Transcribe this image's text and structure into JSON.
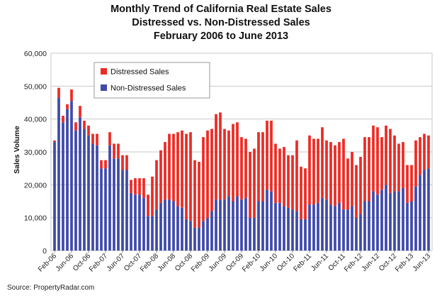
{
  "chart_data": {
    "type": "bar",
    "stacked": true,
    "title": [
      "Monthly Trend of California Real Estate Sales",
      "Distressed vs. Non-Distressed Sales",
      "February 2006 to June 2013"
    ],
    "ylabel": "Sales Volume",
    "source": "Source: PropertyRadar.com",
    "ylim": [
      0,
      60000
    ],
    "yticks": [
      "0",
      "10,000",
      "20,000",
      "30,000",
      "40,000",
      "50,000",
      "60,000"
    ],
    "grid": true,
    "legend": {
      "position": "top-left"
    },
    "start_month": "2006-02",
    "x_tick_labels": [
      "Feb-06",
      "Jun-06",
      "Oct-06",
      "Feb-07",
      "Jun-07",
      "Oct-07",
      "Feb-08",
      "Jun-08",
      "Oct-08",
      "Feb-09",
      "Jun-09",
      "Oct-09",
      "Feb-10",
      "Jun-10",
      "Oct-10",
      "Feb-11",
      "Jun-11",
      "Oct-11",
      "Feb-12",
      "Jun-12",
      "Oct-12",
      "Feb-13",
      "Jun-13"
    ],
    "series": [
      {
        "name": "Non-Distressed Sales",
        "color": "#3f4aaa",
        "values": [
          33000,
          46500,
          39000,
          43000,
          45500,
          36500,
          40500,
          37000,
          35000,
          32500,
          32000,
          25000,
          25000,
          32000,
          28000,
          28000,
          24500,
          24500,
          17500,
          17000,
          17000,
          16000,
          10500,
          10500,
          12500,
          14500,
          15500,
          15500,
          15000,
          13500,
          13000,
          9500,
          9000,
          7000,
          7000,
          9000,
          10000,
          12000,
          15500,
          15500,
          15500,
          16500,
          15000,
          16500,
          15500,
          16000,
          10000,
          10000,
          15000,
          15000,
          18500,
          18000,
          14500,
          14500,
          13500,
          13000,
          12500,
          12000,
          9500,
          9500,
          14000,
          14000,
          14500,
          16000,
          15500,
          14000,
          13500,
          14500,
          12500,
          12500,
          13500,
          10000,
          11000,
          15000,
          15000,
          18000,
          17000,
          18500,
          20000,
          17500,
          18000,
          18000,
          19000,
          14500,
          15000,
          19500,
          23000,
          24500,
          25000
        ]
      },
      {
        "name": "Distressed Sales",
        "color": "#ee2a24",
        "values": [
          500,
          3000,
          2000,
          1500,
          3500,
          2500,
          3500,
          2500,
          3000,
          3000,
          3500,
          2500,
          2500,
          4000,
          4500,
          4500,
          4500,
          4500,
          4000,
          5000,
          5000,
          6000,
          6500,
          12000,
          15000,
          16000,
          17500,
          20000,
          20500,
          22500,
          23500,
          26000,
          27000,
          20500,
          20000,
          25500,
          26500,
          25000,
          26000,
          26500,
          21500,
          20000,
          23500,
          22500,
          19000,
          18000,
          20000,
          21000,
          21000,
          21000,
          21000,
          21500,
          18000,
          16500,
          18000,
          16000,
          16500,
          21500,
          16000,
          15500,
          21000,
          20000,
          19500,
          21500,
          18000,
          19000,
          18500,
          18500,
          21500,
          15500,
          16500,
          16000,
          17500,
          19500,
          19500,
          20000,
          20500,
          16000,
          18000,
          19500,
          17000,
          14500,
          14000,
          11500,
          11000,
          14000,
          11500,
          11000,
          10000
        ]
      }
    ]
  }
}
